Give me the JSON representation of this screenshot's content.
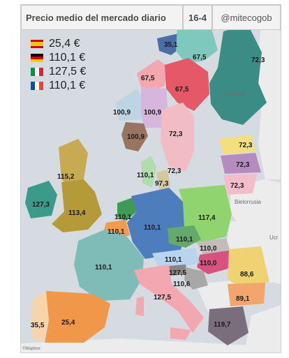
{
  "header": {
    "title": "Precio medio del mercado diario",
    "date": "16-4",
    "handle": "@mitecogob"
  },
  "legend": [
    {
      "country": "España",
      "flag_colors": [
        "#c60b1e",
        "#ffc400",
        "#c60b1e"
      ],
      "flag_orientation": "horizontal",
      "value": "25,4 €"
    },
    {
      "country": "Alemania",
      "flag_colors": [
        "#000000",
        "#dd0000",
        "#ffce00"
      ],
      "flag_orientation": "horizontal",
      "value": "110,1 €"
    },
    {
      "country": "Italia",
      "flag_colors": [
        "#009246",
        "#ffffff",
        "#ce2b37"
      ],
      "flag_orientation": "vertical",
      "value": "127,5 €"
    },
    {
      "country": "Francia",
      "flag_colors": [
        "#0055a4",
        "#ffffff",
        "#ef4135"
      ],
      "flag_orientation": "vertical",
      "value": "110,1 €"
    }
  ],
  "price_labels": {
    "no1": "35,1",
    "no2": "67,5",
    "fi": "72,3",
    "no3": "67,5",
    "se3": "67,5",
    "no4": "100,9",
    "se4": "100,9",
    "no5": "100,9",
    "fi_s": "72,3",
    "dk1": "110,1",
    "dk2": "97,3",
    "lt": "72,3",
    "lv": "72,3",
    "ee": "72,3",
    "ie": "127,3",
    "gb": "115,2",
    "uk": "113,4",
    "nl": "110,1",
    "be": "110,1",
    "de": "110,1",
    "pl": "117,4",
    "cz": "110,1",
    "sk": "110,0",
    "hu": "110,0",
    "fr": "110,1",
    "at": "110,1",
    "si": "127,5",
    "hr": "110,6",
    "ro": "88,6",
    "bg": "89,1",
    "gr": "119,7",
    "it": "127,5",
    "pt": "35,5",
    "es": "25,4"
  },
  "place_labels": {
    "finland": "Finlandia",
    "belarus": "Bielorrusia",
    "ukraine": "Ucr"
  },
  "attribution": "©Mapbox"
}
